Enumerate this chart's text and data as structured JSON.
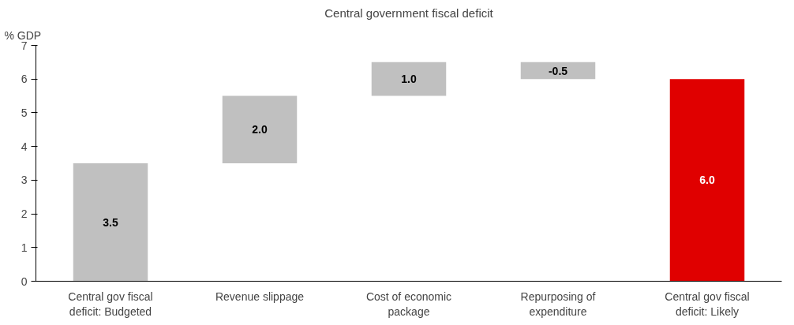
{
  "chart_data": {
    "type": "bar",
    "title": "Central government fiscal deficit",
    "ylabel": "% GDP",
    "categories": [
      "Central gov fiscal deficit: Budgeted",
      "Revenue slippage",
      "Cost of economic package",
      "Repurposing of expenditure",
      "Central gov fiscal deficit: Likely"
    ],
    "values": [
      3.5,
      2.0,
      1.0,
      -0.5,
      6.0
    ],
    "base": [
      0,
      3.5,
      5.5,
      6.5,
      0
    ],
    "colors": [
      "#c0c0c0",
      "#c0c0c0",
      "#c0c0c0",
      "#c0c0c0",
      "#e00000"
    ],
    "value_labels": [
      "3.5",
      "2.0",
      "1.0",
      "-0.5",
      "6.0"
    ],
    "ylim": [
      0,
      7
    ],
    "yticks": [
      0,
      1,
      2,
      3,
      4,
      5,
      6,
      7
    ],
    "grid": false
  }
}
